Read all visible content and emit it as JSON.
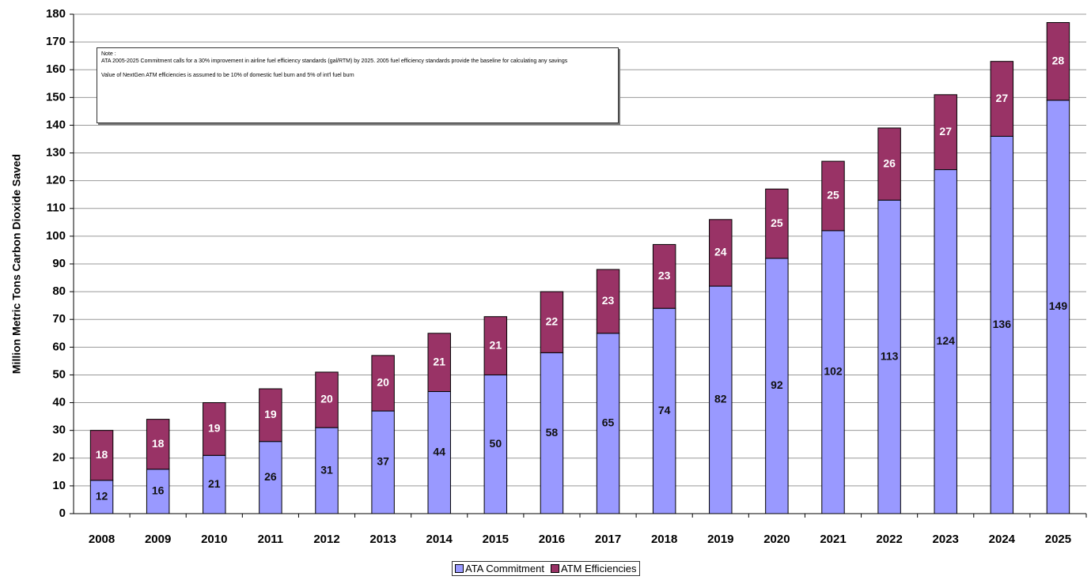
{
  "chart_data": {
    "type": "stacked_bar",
    "y_label": "Million Metric Tons Carbon Dioxide Saved",
    "categories": [
      "2008",
      "2009",
      "2010",
      "2011",
      "2012",
      "2013",
      "2014",
      "2015",
      "2016",
      "2017",
      "2018",
      "2019",
      "2020",
      "2021",
      "2022",
      "2023",
      "2024",
      "2025"
    ],
    "series": [
      {
        "name": "ATA Commitment",
        "color": "#9999ff",
        "values": [
          12,
          16,
          21,
          26,
          31,
          37,
          44,
          50,
          58,
          65,
          74,
          82,
          92,
          102,
          113,
          124,
          136,
          149
        ]
      },
      {
        "name": "ATM Efficiencies",
        "color": "#993366",
        "values": [
          18,
          18,
          19,
          19,
          20,
          20,
          21,
          21,
          22,
          23,
          23,
          24,
          25,
          25,
          26,
          27,
          27,
          28
        ]
      }
    ],
    "ylim": [
      0,
      180
    ],
    "yticks": [
      0,
      10,
      20,
      30,
      40,
      50,
      60,
      70,
      80,
      90,
      100,
      110,
      120,
      130,
      140,
      150,
      160,
      170,
      180
    ],
    "grid": true,
    "legend": "bottom",
    "annotation": {
      "title": "Note :",
      "lines": [
        "ATA 2005-2025 Commitment calls for a 30% improvement in airline fuel efficiency standards (gal/RTM) by 2025.  2005 fuel efficiency standards provide the baseline for calculating any savings",
        "Value of NextGen ATM efficiencies is assumed to be 10% of domestic fuel burn and 5% of int'l fuel burn"
      ]
    }
  }
}
